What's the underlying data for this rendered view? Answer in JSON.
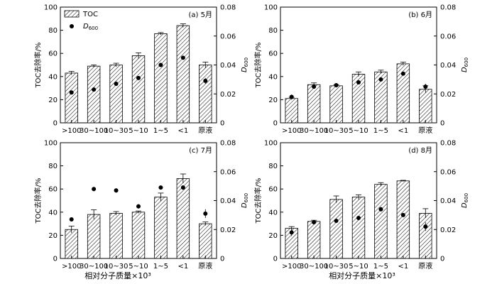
{
  "x_axis_title": "相对分子质量×10³",
  "colors": {
    "bar_hatch": "#000000",
    "dot": "#000000",
    "axis": "#000000"
  },
  "chart_data": [
    {
      "type": "bar",
      "title": "(a) 5月",
      "categories": [
        ">100",
        "30~100",
        "10~30",
        "5~10",
        "1~5",
        "<1",
        "原液"
      ],
      "ylabel": "TOC去除率/%",
      "y2label": "D600",
      "ylim": [
        0,
        100
      ],
      "y2lim": [
        0,
        0.08
      ],
      "yticks": [
        "0",
        "20",
        "40",
        "60",
        "80",
        "100"
      ],
      "y2ticks": [
        "0",
        "0.02",
        "0.04",
        "0.06",
        "0.08"
      ],
      "legend": {
        "position": "top-left",
        "bar_label": "TOC",
        "dot_label": "D600"
      },
      "series": [
        {
          "name": "TOC",
          "kind": "bar",
          "values": [
            43,
            49,
            50,
            58,
            77,
            84,
            50
          ],
          "errors": [
            1.5,
            1,
            1.5,
            2.5,
            1,
            1.5,
            2.5
          ]
        },
        {
          "name": "D600",
          "kind": "scatter",
          "values": [
            0.021,
            0.023,
            0.027,
            0.031,
            0.04,
            0.045,
            0.029
          ],
          "errors": [
            0.001,
            0.001,
            0.0015,
            0.001,
            0.001,
            0.001,
            0.002
          ]
        }
      ]
    },
    {
      "type": "bar",
      "title": "(b) 6月",
      "categories": [
        ">100",
        "30~100",
        "10~30",
        "5~10",
        "1~5",
        "<1",
        "原液"
      ],
      "ylabel": "TOC去除率/%",
      "y2label": "D600",
      "ylim": [
        0,
        100
      ],
      "y2lim": [
        0,
        0.08
      ],
      "yticks": [
        "0",
        "20",
        "40",
        "60",
        "80",
        "100"
      ],
      "y2ticks": [
        "0",
        "0.02",
        "0.04",
        "0.06",
        "0.08"
      ],
      "series": [
        {
          "name": "TOC",
          "kind": "bar",
          "values": [
            21,
            33,
            32,
            42,
            44,
            51,
            29
          ],
          "errors": [
            1,
            1.5,
            1,
            2,
            1.5,
            1.5,
            3
          ]
        },
        {
          "name": "D600",
          "kind": "scatter",
          "values": [
            0.018,
            0.025,
            0.026,
            0.028,
            0.03,
            0.034,
            0.025
          ],
          "errors": [
            0.0015,
            0.0015,
            0.0015,
            0.001,
            0.0015,
            0.001,
            0.002
          ]
        }
      ]
    },
    {
      "type": "bar",
      "title": "(c) 7月",
      "categories": [
        ">100",
        "30~100",
        "10~30",
        "5~10",
        "1~5",
        "<1",
        "原液"
      ],
      "ylabel": "TOC去除率/%",
      "y2label": "D600",
      "ylim": [
        0,
        100
      ],
      "y2lim": [
        0,
        0.08
      ],
      "yticks": [
        "0",
        "20",
        "40",
        "60",
        "80",
        "100"
      ],
      "y2ticks": [
        "0",
        "0.02",
        "0.04",
        "0.06",
        "0.08"
      ],
      "series": [
        {
          "name": "TOC",
          "kind": "bar",
          "values": [
            25,
            38,
            39,
            40,
            53,
            69,
            30
          ],
          "errors": [
            3,
            4,
            1.5,
            1,
            3.5,
            4,
            1.5
          ]
        },
        {
          "name": "D600",
          "kind": "scatter",
          "values": [
            0.027,
            0.048,
            0.047,
            0.036,
            0.049,
            0.049,
            0.031
          ],
          "errors": [
            0.001,
            0.0015,
            0.0015,
            0.0015,
            0.001,
            0.0015,
            0.003
          ]
        }
      ]
    },
    {
      "type": "bar",
      "title": "(d) 8月",
      "categories": [
        ">100",
        "30~100",
        "10~30",
        "5~10",
        "1~5",
        "<1",
        "原液"
      ],
      "ylabel": "TOC去除率/%",
      "y2label": "D600",
      "ylim": [
        0,
        100
      ],
      "y2lim": [
        0,
        0.08
      ],
      "yticks": [
        "0",
        "20",
        "40",
        "60",
        "80",
        "100"
      ],
      "y2ticks": [
        "0",
        "0.02",
        "0.04",
        "0.06",
        "0.08"
      ],
      "series": [
        {
          "name": "TOC",
          "kind": "bar",
          "values": [
            26,
            32,
            51,
            53,
            64,
            67,
            39
          ],
          "errors": [
            1.5,
            1,
            3,
            2,
            1.5,
            0.5,
            4
          ]
        },
        {
          "name": "D600",
          "kind": "scatter",
          "values": [
            0.018,
            0.025,
            0.026,
            0.028,
            0.034,
            0.03,
            0.022
          ],
          "errors": [
            0.0025,
            0.0015,
            0.0015,
            0.001,
            0.0015,
            0.001,
            0.003
          ]
        }
      ]
    }
  ]
}
